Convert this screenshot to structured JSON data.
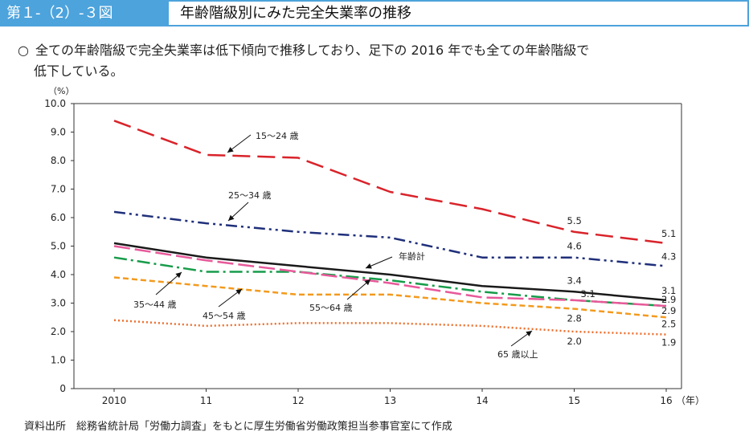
{
  "header": {
    "figure_number": "第１-（2）-３図",
    "title": "年齢階級別にみた完全失業率の推移"
  },
  "summary": {
    "bullet": "○",
    "line1": "全ての年齢階級で完全失業率は低下傾向で推移しており、足下の 2016 年でも全ての年齢階級で",
    "line2": "低下している。"
  },
  "source": "資料出所　総務省統計局「労働力調査」をもとに厚生労働省労働政策担当参事官室にて作成",
  "chart_data": {
    "type": "line",
    "ylabel": "（%）",
    "xunit": "（年）",
    "ylim": [
      0,
      10
    ],
    "yticks": [
      "0",
      "1.0",
      "2.0",
      "3.0",
      "4.0",
      "5.0",
      "6.0",
      "7.0",
      "8.0",
      "9.0",
      "10.0"
    ],
    "categories": [
      "2010",
      "11",
      "12",
      "13",
      "14",
      "15",
      "16"
    ],
    "series": [
      {
        "name": "15～24 歳",
        "color": "#d9232a",
        "dash": "22 9",
        "values": [
          9.4,
          8.2,
          8.1,
          6.9,
          6.3,
          5.5,
          5.1
        ]
      },
      {
        "name": "25～34 歳",
        "color": "#1f2f7a",
        "dash": "14 5 3 5 3 5",
        "values": [
          6.2,
          5.8,
          5.5,
          5.3,
          4.6,
          4.6,
          4.3
        ]
      },
      {
        "name": "年齢計",
        "color": "#1a1a1a",
        "dash": "",
        "values": [
          5.1,
          4.6,
          4.3,
          4.0,
          3.6,
          3.4,
          3.1
        ]
      },
      {
        "name": "35～44 歳",
        "color": "#179c4a",
        "dash": "16 5 3 5",
        "values": [
          4.6,
          4.1,
          4.1,
          3.8,
          3.4,
          3.1,
          2.9
        ]
      },
      {
        "name": "45～54 歳",
        "color": "#e8599a",
        "dash": "20 6",
        "values": [
          5.0,
          4.5,
          4.1,
          3.7,
          3.2,
          3.1,
          2.9
        ]
      },
      {
        "name": "55～64 歳",
        "color": "#f39a1e",
        "dash": "7 4",
        "values": [
          3.9,
          3.6,
          3.3,
          3.3,
          3.0,
          2.8,
          2.5
        ]
      },
      {
        "name": "65 歳以上",
        "color": "#ec6f2d",
        "dash": "2 3",
        "values": [
          2.4,
          2.2,
          2.3,
          2.3,
          2.2,
          2.0,
          1.9
        ]
      }
    ],
    "data_labels": [
      {
        "text": "5.5",
        "x": "15",
        "y": 5.5
      },
      {
        "text": "5.1",
        "x": "16",
        "y": 5.1
      },
      {
        "text": "4.6",
        "x": "15",
        "y": 4.6
      },
      {
        "text": "4.3",
        "x": "16",
        "y": 4.3
      },
      {
        "text": "3.4",
        "x": "15",
        "y": 3.4
      },
      {
        "text": "3.1",
        "x": "16",
        "y": 3.1
      },
      {
        "text": "3.1",
        "x": "15",
        "y": 3.1
      },
      {
        "text": "2.9",
        "x": "16",
        "y": 2.9
      },
      {
        "text": "2.9",
        "x": "16",
        "y": 2.9
      },
      {
        "text": "2.8",
        "x": "15",
        "y": 2.8
      },
      {
        "text": "2.5",
        "x": "16",
        "y": 2.5
      },
      {
        "text": "2.0",
        "x": "15",
        "y": 2.0
      },
      {
        "text": "1.9",
        "x": "16",
        "y": 1.9
      }
    ]
  }
}
